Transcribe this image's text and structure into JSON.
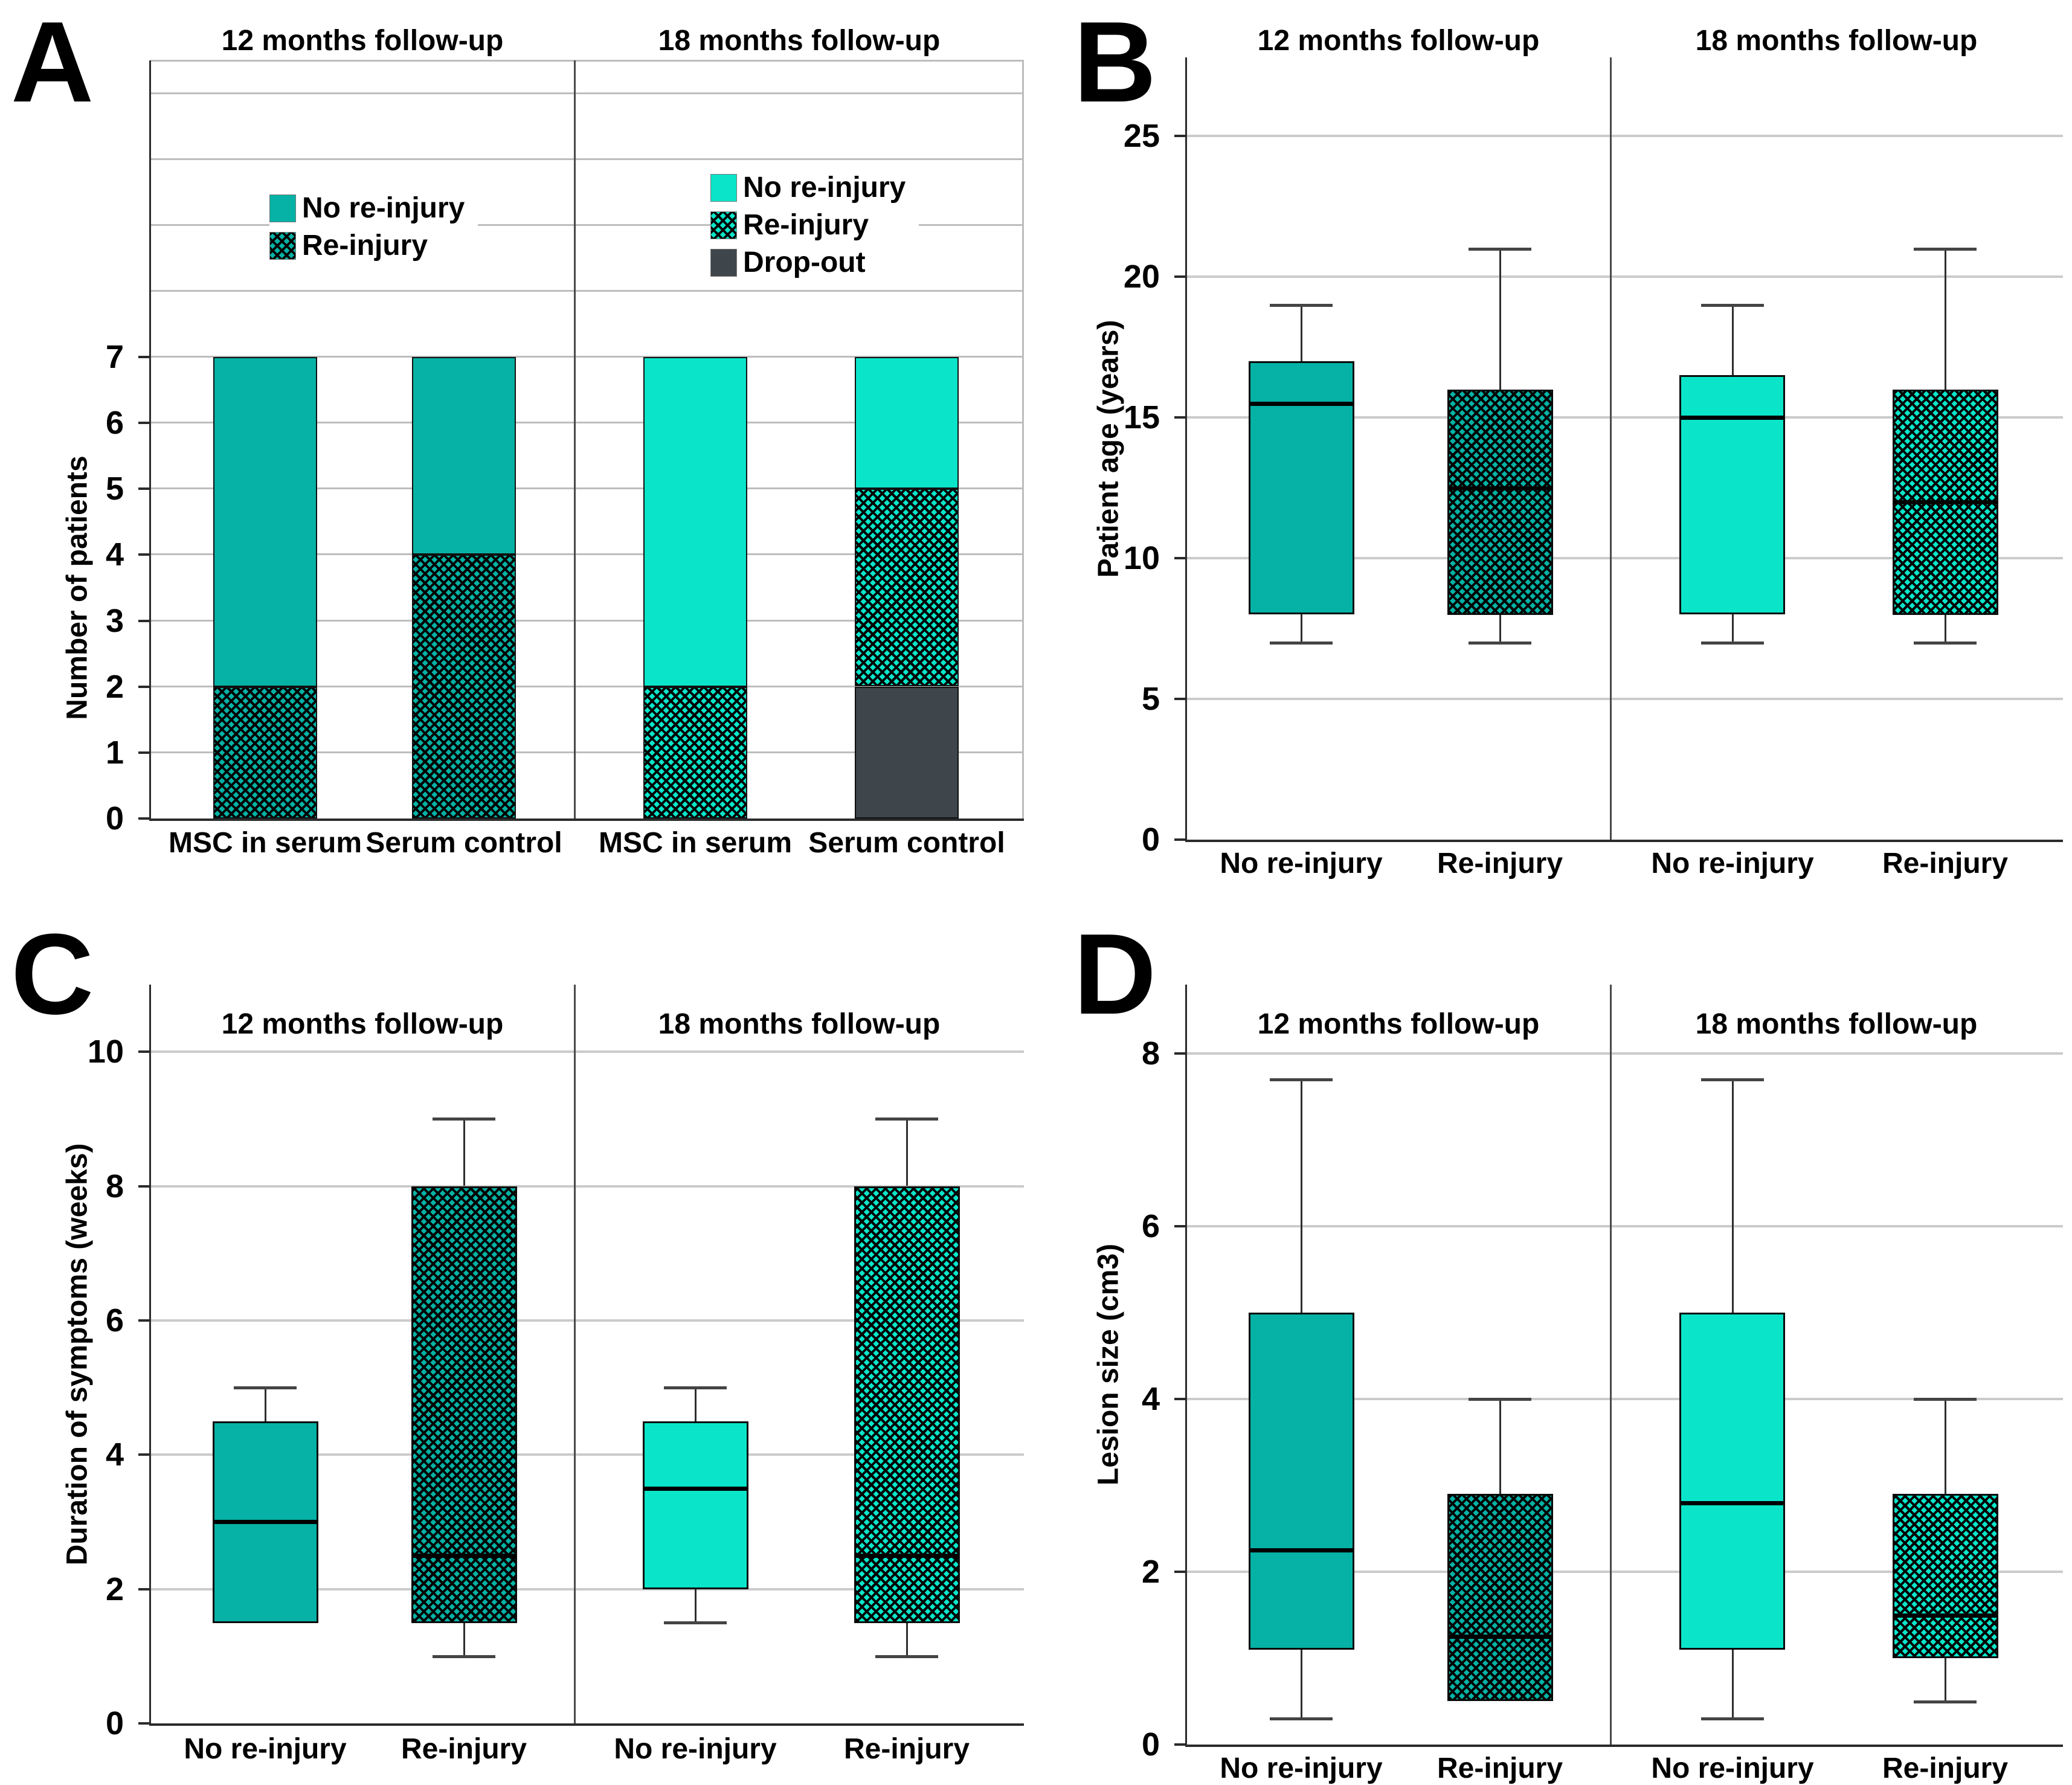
{
  "figure": {
    "panel_letters": [
      "A",
      "B",
      "C",
      "D"
    ],
    "repeated_subpanel_titles": [
      "12 months follow-up",
      "18 months follow-up"
    ]
  },
  "colors": {
    "teal_12m": "#05B2A5",
    "teal_18m": "#0AE5CA",
    "dropout": "#3E464B",
    "gridline": "#CBCBCB",
    "axis": "#2B2B2B"
  },
  "chart_data": [
    {
      "id": "A",
      "panel_label": "A",
      "type": "bar",
      "stacked": true,
      "ylabel": "Number of patients",
      "ylim": [
        0,
        11.5
      ],
      "yticks": [
        0,
        1,
        2,
        3,
        4,
        5,
        6,
        7
      ],
      "grid_values": [
        1,
        2,
        3,
        4,
        5,
        6,
        7,
        8,
        9,
        10,
        11
      ],
      "grid": true,
      "legend_position": "inside-top",
      "subpanels": [
        {
          "title": "12 months follow-up",
          "legend": [
            {
              "label": "No re-injury",
              "style": "solid_12m"
            },
            {
              "label": "Re-injury",
              "style": "hatch_12m"
            }
          ],
          "bars": [
            {
              "category": "MSC in serum",
              "segments": [
                {
                  "name": "Re-injury",
                  "style": "hatch_12m",
                  "value": 2
                },
                {
                  "name": "No re-injury",
                  "style": "solid_12m",
                  "value": 5
                }
              ]
            },
            {
              "category": "Serum control",
              "segments": [
                {
                  "name": "Re-injury",
                  "style": "hatch_12m",
                  "value": 4
                },
                {
                  "name": "No re-injury",
                  "style": "solid_12m",
                  "value": 3
                }
              ]
            }
          ]
        },
        {
          "title": "18 months follow-up",
          "legend": [
            {
              "label": "No re-injury",
              "style": "solid_18m"
            },
            {
              "label": "Re-injury",
              "style": "hatch_18m"
            },
            {
              "label": "Drop-out",
              "style": "dropout"
            }
          ],
          "bars": [
            {
              "category": "MSC in serum",
              "segments": [
                {
                  "name": "Re-injury",
                  "style": "hatch_18m",
                  "value": 2
                },
                {
                  "name": "No re-injury",
                  "style": "solid_18m",
                  "value": 5
                }
              ]
            },
            {
              "category": "Serum control",
              "segments": [
                {
                  "name": "Drop-out",
                  "style": "dropout",
                  "value": 2
                },
                {
                  "name": "Re-injury",
                  "style": "hatch_18m",
                  "value": 3
                },
                {
                  "name": "No re-injury",
                  "style": "solid_18m",
                  "value": 2
                }
              ]
            }
          ]
        }
      ]
    },
    {
      "id": "B",
      "panel_label": "B",
      "type": "box",
      "ylabel": "Patient age (years)",
      "ylim": [
        0,
        27.8
      ],
      "yticks": [
        0,
        5,
        10,
        15,
        20,
        25
      ],
      "grid_values": [
        5,
        10,
        15,
        20,
        25
      ],
      "grid": true,
      "subpanels": [
        {
          "title": "12 months follow-up",
          "boxes": [
            {
              "category": "No re-injury",
              "style": "solid_12m",
              "whisker_low": 7,
              "q1": 8,
              "median": 15.5,
              "q3": 17,
              "whisker_high": 19
            },
            {
              "category": "Re-injury",
              "style": "hatch_12m",
              "whisker_low": 7,
              "q1": 8,
              "median": 12.5,
              "q3": 16,
              "whisker_high": 21
            }
          ]
        },
        {
          "title": "18 months follow-up",
          "boxes": [
            {
              "category": "No re-injury",
              "style": "solid_18m",
              "whisker_low": 7,
              "q1": 8,
              "median": 15,
              "q3": 16.5,
              "whisker_high": 19
            },
            {
              "category": "Re-injury",
              "style": "hatch_18m",
              "whisker_low": 7,
              "q1": 8,
              "median": 12,
              "q3": 16,
              "whisker_high": 21
            }
          ]
        }
      ]
    },
    {
      "id": "C",
      "panel_label": "C",
      "type": "box",
      "ylabel": "Duration of symptoms (weeks)",
      "ylim": [
        0,
        11
      ],
      "yticks": [
        0,
        2,
        4,
        6,
        8,
        10
      ],
      "grid_values": [
        2,
        4,
        6,
        8,
        10
      ],
      "grid": true,
      "subpanels": [
        {
          "title": "12 months follow-up",
          "boxes": [
            {
              "category": "No re-injury",
              "style": "solid_12m",
              "whisker_low": null,
              "q1": 1.5,
              "median": 3,
              "q3": 4.5,
              "whisker_high": 5
            },
            {
              "category": "Re-injury",
              "style": "hatch_12m",
              "whisker_low": 1,
              "q1": 1.5,
              "median": 2.5,
              "q3": 8,
              "whisker_high": 9
            }
          ]
        },
        {
          "title": "18 months follow-up",
          "boxes": [
            {
              "category": "No re-injury",
              "style": "solid_18m",
              "whisker_low": 1.5,
              "q1": 2,
              "median": 3.5,
              "q3": 4.5,
              "whisker_high": 5
            },
            {
              "category": "Re-injury",
              "style": "hatch_18m",
              "whisker_low": 1,
              "q1": 1.5,
              "median": 2.5,
              "q3": 8,
              "whisker_high": 9
            }
          ]
        }
      ]
    },
    {
      "id": "D",
      "panel_label": "D",
      "type": "box",
      "ylabel": "Lesion size (cm3)",
      "ylim": [
        0,
        8.8
      ],
      "yticks": [
        0,
        2,
        4,
        6,
        8
      ],
      "grid_values": [
        2,
        4,
        6,
        8
      ],
      "grid": true,
      "subpanels": [
        {
          "title": "12 months follow-up",
          "boxes": [
            {
              "category": "No re-injury",
              "style": "solid_12m",
              "whisker_low": 0.3,
              "q1": 1.1,
              "median": 2.25,
              "q3": 5,
              "whisker_high": 7.7
            },
            {
              "category": "Re-injury",
              "style": "hatch_12m",
              "whisker_low": null,
              "q1": 0.5,
              "median": 1.25,
              "q3": 2.9,
              "whisker_high": 4
            }
          ]
        },
        {
          "title": "18 months follow-up",
          "boxes": [
            {
              "category": "No re-injury",
              "style": "solid_18m",
              "whisker_low": 0.3,
              "q1": 1.1,
              "median": 2.8,
              "q3": 5,
              "whisker_high": 7.7
            },
            {
              "category": "Re-injury",
              "style": "hatch_18m",
              "whisker_low": 0.5,
              "q1": 1,
              "median": 1.5,
              "q3": 2.9,
              "whisker_high": 4
            }
          ]
        }
      ]
    }
  ]
}
